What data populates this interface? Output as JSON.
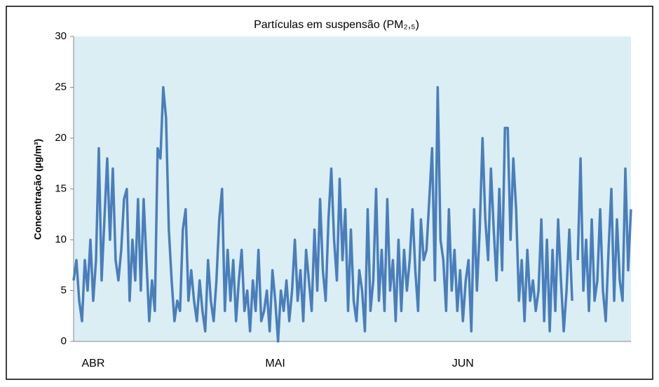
{
  "chart_data": {
    "type": "line",
    "title": "Partículas em suspensão (PM₂,₅)",
    "y_label": "Concentração (µg/m³)",
    "categories": [
      null,
      null,
      null,
      null,
      null,
      null,
      null,
      "ABR",
      null,
      null,
      null,
      null,
      null,
      null,
      null,
      null,
      null,
      null,
      null,
      null,
      null,
      null,
      null,
      null,
      null,
      null,
      null,
      null,
      null,
      null,
      null,
      null,
      null,
      null,
      null,
      null,
      null,
      null,
      null,
      null,
      null,
      null,
      null,
      null,
      null,
      null,
      null,
      null,
      null,
      null,
      null,
      null,
      null,
      null,
      null,
      null,
      null,
      null,
      null,
      null,
      null,
      null,
      null,
      null,
      null,
      null,
      null,
      null,
      null,
      null,
      null,
      null,
      "MAI",
      null,
      null,
      null,
      null,
      null,
      null,
      null,
      null,
      null,
      null,
      null,
      null,
      null,
      null,
      null,
      null,
      null,
      null,
      null,
      null,
      null,
      null,
      null,
      null,
      null,
      null,
      null,
      null,
      null,
      null,
      null,
      null,
      null,
      null,
      null,
      null,
      null,
      null,
      null,
      null,
      null,
      null,
      null,
      null,
      null,
      null,
      null,
      null,
      null,
      null,
      null,
      null,
      null,
      null,
      null,
      null,
      null,
      null,
      null,
      null,
      null,
      null,
      null,
      null,
      null,
      null,
      "JUN",
      null,
      null,
      null,
      null,
      null,
      null,
      null,
      null,
      null,
      null,
      null,
      null,
      null,
      null,
      null,
      null,
      null,
      null,
      null,
      null,
      null,
      null,
      null,
      null,
      null,
      null,
      null,
      null,
      null,
      null,
      null,
      null,
      null,
      null,
      null,
      null,
      null,
      null,
      null,
      null,
      null,
      null,
      null,
      null,
      null,
      null,
      null,
      null,
      null,
      null,
      null,
      null,
      null,
      null,
      null,
      null,
      null,
      null,
      null,
      null
    ],
    "series": [
      {
        "name": "PM2,5",
        "color": "#4a7ebb",
        "values": [
          6,
          8,
          4,
          2,
          8,
          5,
          10,
          4,
          8,
          19,
          6,
          12,
          18,
          10,
          17,
          8,
          6,
          9,
          14,
          15,
          4,
          10,
          6,
          14,
          5,
          14,
          8,
          2,
          6,
          3,
          19,
          18,
          25,
          22,
          11,
          6,
          2,
          4,
          3,
          11,
          13,
          4,
          7,
          4,
          2,
          6,
          3,
          1,
          8,
          4,
          2,
          6,
          12,
          15,
          3,
          9,
          4,
          8,
          2,
          6,
          9,
          3,
          5,
          1,
          6,
          3,
          9,
          2,
          3,
          5,
          1,
          7,
          4,
          0,
          5,
          3,
          6,
          2,
          5,
          10,
          4,
          7,
          2,
          9,
          6,
          3,
          11,
          5,
          14,
          7,
          4,
          12,
          17,
          10,
          6,
          16,
          8,
          13,
          3,
          11,
          4,
          2,
          7,
          5,
          1,
          13,
          3,
          6,
          15,
          4,
          9,
          3,
          14,
          5,
          8,
          2,
          10,
          3,
          9,
          5,
          8,
          13,
          7,
          3,
          12,
          8,
          9,
          14,
          19,
          6,
          25,
          10,
          8,
          3,
          13,
          5,
          9,
          3,
          7,
          2,
          6,
          8,
          1,
          13,
          5,
          11,
          20,
          12,
          8,
          17,
          11,
          6,
          15,
          7,
          21,
          21,
          10,
          18,
          13,
          4,
          8,
          2,
          9,
          4,
          6,
          3,
          5,
          12,
          2,
          10,
          1,
          9,
          3,
          12,
          6,
          1,
          5,
          11,
          4,
          null,
          8,
          18,
          5,
          10,
          3,
          12,
          4,
          6,
          13,
          5,
          2,
          9,
          15,
          4,
          12,
          6,
          4,
          17,
          7,
          13
        ]
      }
    ],
    "ylim": [
      0,
      30
    ],
    "yticks": [
      0,
      5,
      10,
      15,
      20,
      25,
      30
    ],
    "grid": false,
    "plot_background": "#dbeef4"
  }
}
